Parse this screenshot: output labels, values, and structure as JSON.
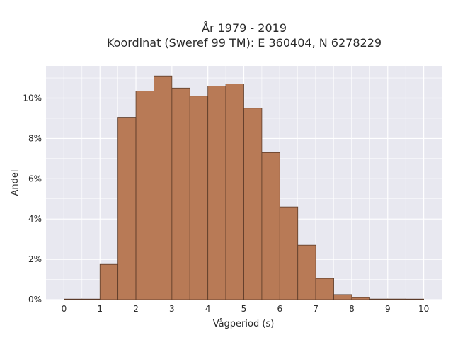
{
  "chart_data": {
    "type": "bar",
    "title_line1": "År 1979 - 2019",
    "title_line2": "Koordinat (Sweref 99 TM): E 360404, N 6278229",
    "xlabel": "Vågperiod (s)",
    "ylabel": "Andel",
    "bin_width": 0.5,
    "bin_starts": [
      0,
      0.5,
      1,
      1.5,
      2,
      2.5,
      3,
      3.5,
      4,
      4.5,
      5,
      5.5,
      6,
      6.5,
      7,
      7.5,
      8,
      8.5,
      9,
      9.5
    ],
    "values": [
      0.02,
      0.0,
      1.75,
      9.05,
      10.35,
      11.1,
      10.5,
      10.1,
      10.6,
      10.7,
      9.5,
      7.3,
      4.6,
      2.7,
      1.05,
      0.25,
      0.1,
      0.03,
      0.03,
      0.0
    ],
    "x_ticks": [
      "0",
      "1",
      "2",
      "3",
      "4",
      "5",
      "6",
      "7",
      "8",
      "9",
      "10"
    ],
    "y_ticks": [
      "0%",
      "2%",
      "4%",
      "6%",
      "8%",
      "10%"
    ],
    "xlim": [
      -0.5,
      10.5
    ],
    "ylim": [
      0,
      11.6
    ],
    "grid": true,
    "colors": {
      "plot_bg": "#e8e8f0",
      "grid": "#ffffff",
      "bar_fill": "#b87a56",
      "bar_edge": "#5a3a28"
    }
  }
}
